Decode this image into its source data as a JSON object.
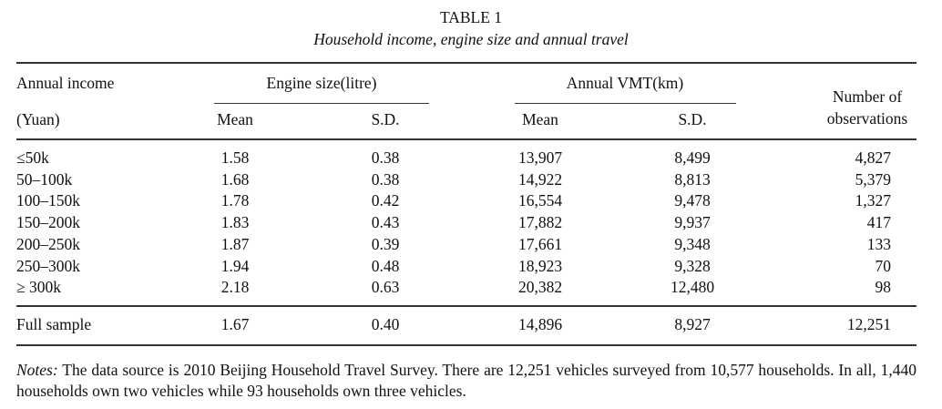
{
  "title": "TABLE 1",
  "subtitle": "Household income, engine size and annual travel",
  "headers": {
    "income_line1": "Annual income",
    "income_line2": "(Yuan)",
    "engine_group": "Engine size(litre)",
    "vmt_group": "Annual VMT(km)",
    "mean": "Mean",
    "sd": "S.D.",
    "obs_line1": "Number of",
    "obs_line2": "observations"
  },
  "rows": [
    {
      "income": "≤50k",
      "eng_mean": "1.58",
      "eng_sd": "0.38",
      "vmt_mean": "13,907",
      "vmt_sd": "8,499",
      "obs": "4,827"
    },
    {
      "income": "50–100k",
      "eng_mean": "1.68",
      "eng_sd": "0.38",
      "vmt_mean": "14,922",
      "vmt_sd": "8,813",
      "obs": "5,379"
    },
    {
      "income": "100–150k",
      "eng_mean": "1.78",
      "eng_sd": "0.42",
      "vmt_mean": "16,554",
      "vmt_sd": "9,478",
      "obs": "1,327"
    },
    {
      "income": "150–200k",
      "eng_mean": "1.83",
      "eng_sd": "0.43",
      "vmt_mean": "17,882",
      "vmt_sd": "9,937",
      "obs": "417"
    },
    {
      "income": "200–250k",
      "eng_mean": "1.87",
      "eng_sd": "0.39",
      "vmt_mean": "17,661",
      "vmt_sd": "9,348",
      "obs": "133"
    },
    {
      "income": "250–300k",
      "eng_mean": "1.94",
      "eng_sd": "0.48",
      "vmt_mean": "18,923",
      "vmt_sd": "9,328",
      "obs": "70"
    },
    {
      "income": "≥ 300k",
      "eng_mean": "2.18",
      "eng_sd": "0.63",
      "vmt_mean": "20,382",
      "vmt_sd": "12,480",
      "obs": "98"
    }
  ],
  "full_sample": {
    "income": "Full sample",
    "eng_mean": "1.67",
    "eng_sd": "0.40",
    "vmt_mean": "14,896",
    "vmt_sd": "8,927",
    "obs": "12,251"
  },
  "notes": {
    "label": "Notes:",
    "text": " The data source is 2010 Beijing Household Travel Survey. There are 12,251 vehicles surveyed from 10,577 households. In all, 1,440 households own two vehicles while 93 households own three vehicles."
  }
}
